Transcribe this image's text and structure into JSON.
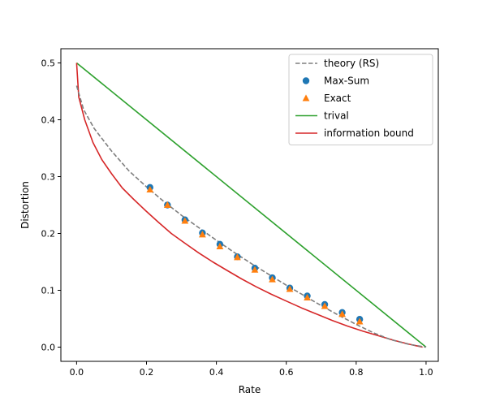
{
  "chart_data": {
    "type": "line",
    "title": "",
    "xlabel": "Rate",
    "ylabel": "Distortion",
    "xlim": [
      -0.045,
      1.035
    ],
    "ylim": [
      -0.025,
      0.525
    ],
    "xticks": [
      0.0,
      0.2,
      0.4,
      0.6,
      0.8,
      1.0
    ],
    "xtick_labels": [
      "0.0",
      "0.2",
      "0.4",
      "0.6",
      "0.8",
      "1.0"
    ],
    "yticks": [
      0.0,
      0.1,
      0.2,
      0.3,
      0.4,
      0.5
    ],
    "ytick_labels": [
      "0.0",
      "0.1",
      "0.2",
      "0.3",
      "0.4",
      "0.5"
    ],
    "grid": false,
    "legend_position": "top-right",
    "series": [
      {
        "name": "theory (RS)",
        "kind": "dashed-line",
        "color": "#7f7f7f",
        "x": [
          0.0,
          0.02,
          0.05,
          0.1,
          0.15,
          0.2,
          0.25,
          0.3,
          0.35,
          0.4,
          0.45,
          0.5,
          0.55,
          0.6,
          0.65,
          0.7,
          0.75,
          0.8,
          0.85,
          0.9,
          0.95,
          1.0
        ],
        "y": [
          0.46,
          0.418,
          0.385,
          0.345,
          0.31,
          0.282,
          0.256,
          0.232,
          0.21,
          0.188,
          0.167,
          0.147,
          0.128,
          0.109,
          0.091,
          0.073,
          0.056,
          0.04,
          0.025,
          0.013,
          0.005,
          0.0
        ]
      },
      {
        "name": "Max-Sum",
        "kind": "scatter-circle",
        "color": "#1f77b4",
        "x": [
          0.21,
          0.26,
          0.31,
          0.36,
          0.41,
          0.46,
          0.51,
          0.56,
          0.61,
          0.66,
          0.71,
          0.76,
          0.81
        ],
        "y": [
          0.281,
          0.25,
          0.224,
          0.201,
          0.181,
          0.159,
          0.139,
          0.122,
          0.104,
          0.09,
          0.075,
          0.061,
          0.049
        ]
      },
      {
        "name": "Exact",
        "kind": "scatter-triangle",
        "color": "#ff7f0e",
        "x": [
          0.21,
          0.26,
          0.31,
          0.36,
          0.41,
          0.46,
          0.51,
          0.56,
          0.61,
          0.66,
          0.71,
          0.76,
          0.81
        ],
        "y": [
          0.277,
          0.25,
          0.222,
          0.198,
          0.177,
          0.158,
          0.136,
          0.119,
          0.102,
          0.087,
          0.072,
          0.058,
          0.045
        ]
      },
      {
        "name": "trival",
        "kind": "line",
        "color": "#2ca02c",
        "x": [
          0.0,
          1.0
        ],
        "y": [
          0.5,
          0.0
        ]
      },
      {
        "name": "information bound",
        "kind": "line",
        "color": "#d62728",
        "x": [
          0.0,
          0.0062,
          0.0233,
          0.0468,
          0.0721,
          0.1002,
          0.1308,
          0.1634,
          0.1977,
          0.2336,
          0.2709,
          0.3094,
          0.3489,
          0.3893,
          0.4304,
          0.4722,
          0.5145,
          0.5572,
          0.6003,
          0.6437,
          0.6874,
          0.7314,
          0.7754,
          0.8195,
          0.8638,
          0.9081,
          0.9526,
          0.99
        ],
        "y": [
          0.5,
          0.44,
          0.4,
          0.36,
          0.33,
          0.305,
          0.28,
          0.26,
          0.24,
          0.22,
          0.2,
          0.183,
          0.166,
          0.15,
          0.135,
          0.12,
          0.106,
          0.093,
          0.081,
          0.069,
          0.058,
          0.047,
          0.037,
          0.028,
          0.02,
          0.012,
          0.005,
          0.0
        ]
      }
    ]
  }
}
